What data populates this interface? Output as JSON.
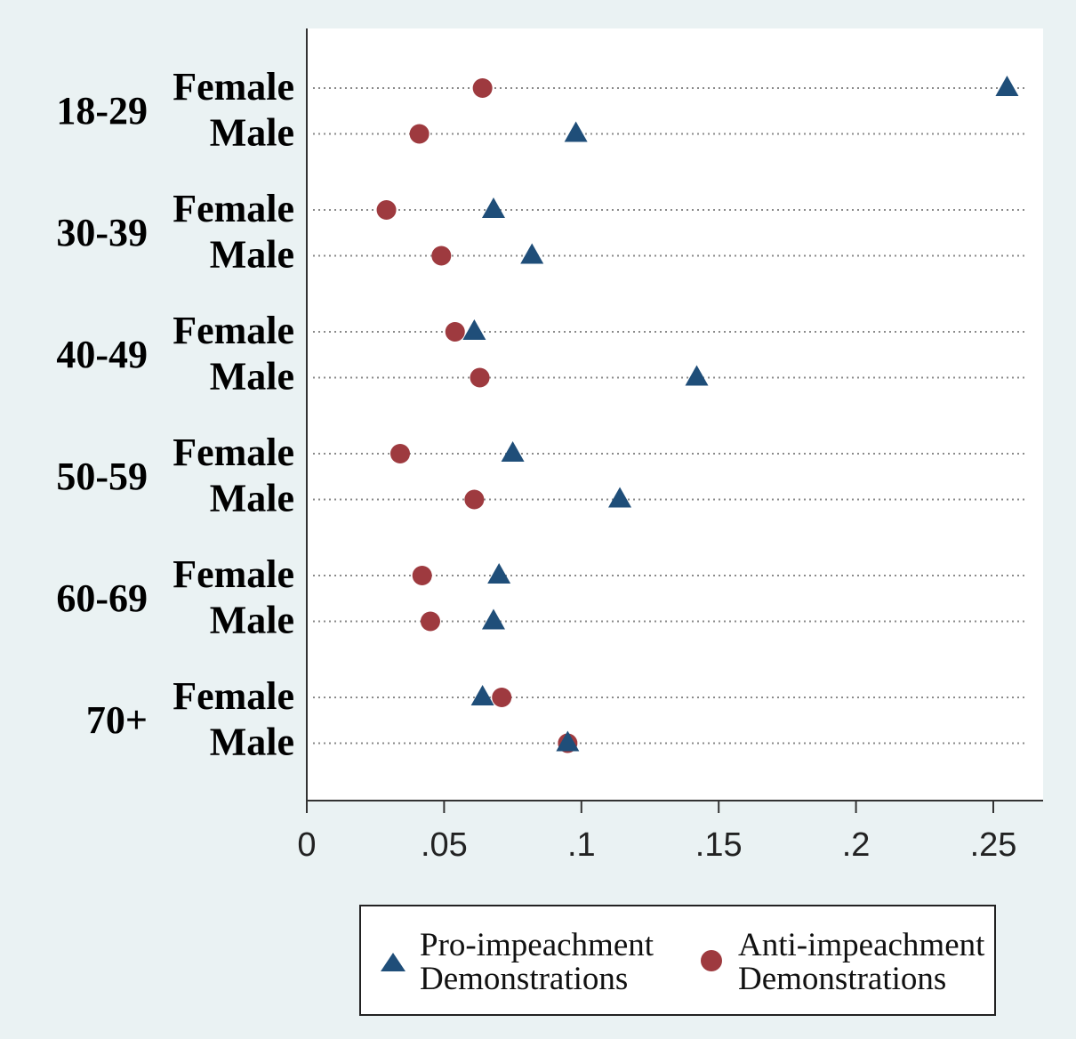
{
  "chart_data": {
    "type": "scatter",
    "x_ticks": [
      "0",
      ".05",
      ".1",
      ".15",
      ".2",
      ".25"
    ],
    "x_tick_values": [
      0,
      0.05,
      0.1,
      0.15,
      0.2,
      0.25
    ],
    "xlim": [
      0,
      0.268
    ],
    "grid": "dotted horizontal",
    "legend_position": "bottom",
    "groups": [
      {
        "label": "18-29",
        "rows": [
          {
            "sex": "Female",
            "pro": 0.255,
            "anti": 0.064
          },
          {
            "sex": "Male",
            "pro": 0.098,
            "anti": 0.041
          }
        ]
      },
      {
        "label": "30-39",
        "rows": [
          {
            "sex": "Female",
            "pro": 0.068,
            "anti": 0.029
          },
          {
            "sex": "Male",
            "pro": 0.082,
            "anti": 0.049
          }
        ]
      },
      {
        "label": "40-49",
        "rows": [
          {
            "sex": "Female",
            "pro": 0.061,
            "anti": 0.054
          },
          {
            "sex": "Male",
            "pro": 0.142,
            "anti": 0.063
          }
        ]
      },
      {
        "label": "50-59",
        "rows": [
          {
            "sex": "Female",
            "pro": 0.075,
            "anti": 0.034
          },
          {
            "sex": "Male",
            "pro": 0.114,
            "anti": 0.061
          }
        ]
      },
      {
        "label": "60-69",
        "rows": [
          {
            "sex": "Female",
            "pro": 0.07,
            "anti": 0.042
          },
          {
            "sex": "Male",
            "pro": 0.068,
            "anti": 0.045
          }
        ]
      },
      {
        "label": "70+",
        "rows": [
          {
            "sex": "Female",
            "pro": 0.064,
            "anti": 0.071
          },
          {
            "sex": "Male",
            "pro": 0.095,
            "anti": 0.095
          }
        ]
      }
    ],
    "series": [
      {
        "key": "pro",
        "marker": "triangle",
        "color": "#1f4e79",
        "legend_lines": [
          "Pro-impeachment",
          "Demonstrations"
        ]
      },
      {
        "key": "anti",
        "marker": "circle",
        "color": "#9e3a3f",
        "legend_lines": [
          "Anti-impeachment",
          "Demonstrations"
        ]
      }
    ]
  },
  "colors": {
    "background": "#eaf2f3",
    "plot_area": "#ffffff",
    "pro": "#1f4e79",
    "anti": "#9e3a3f"
  }
}
